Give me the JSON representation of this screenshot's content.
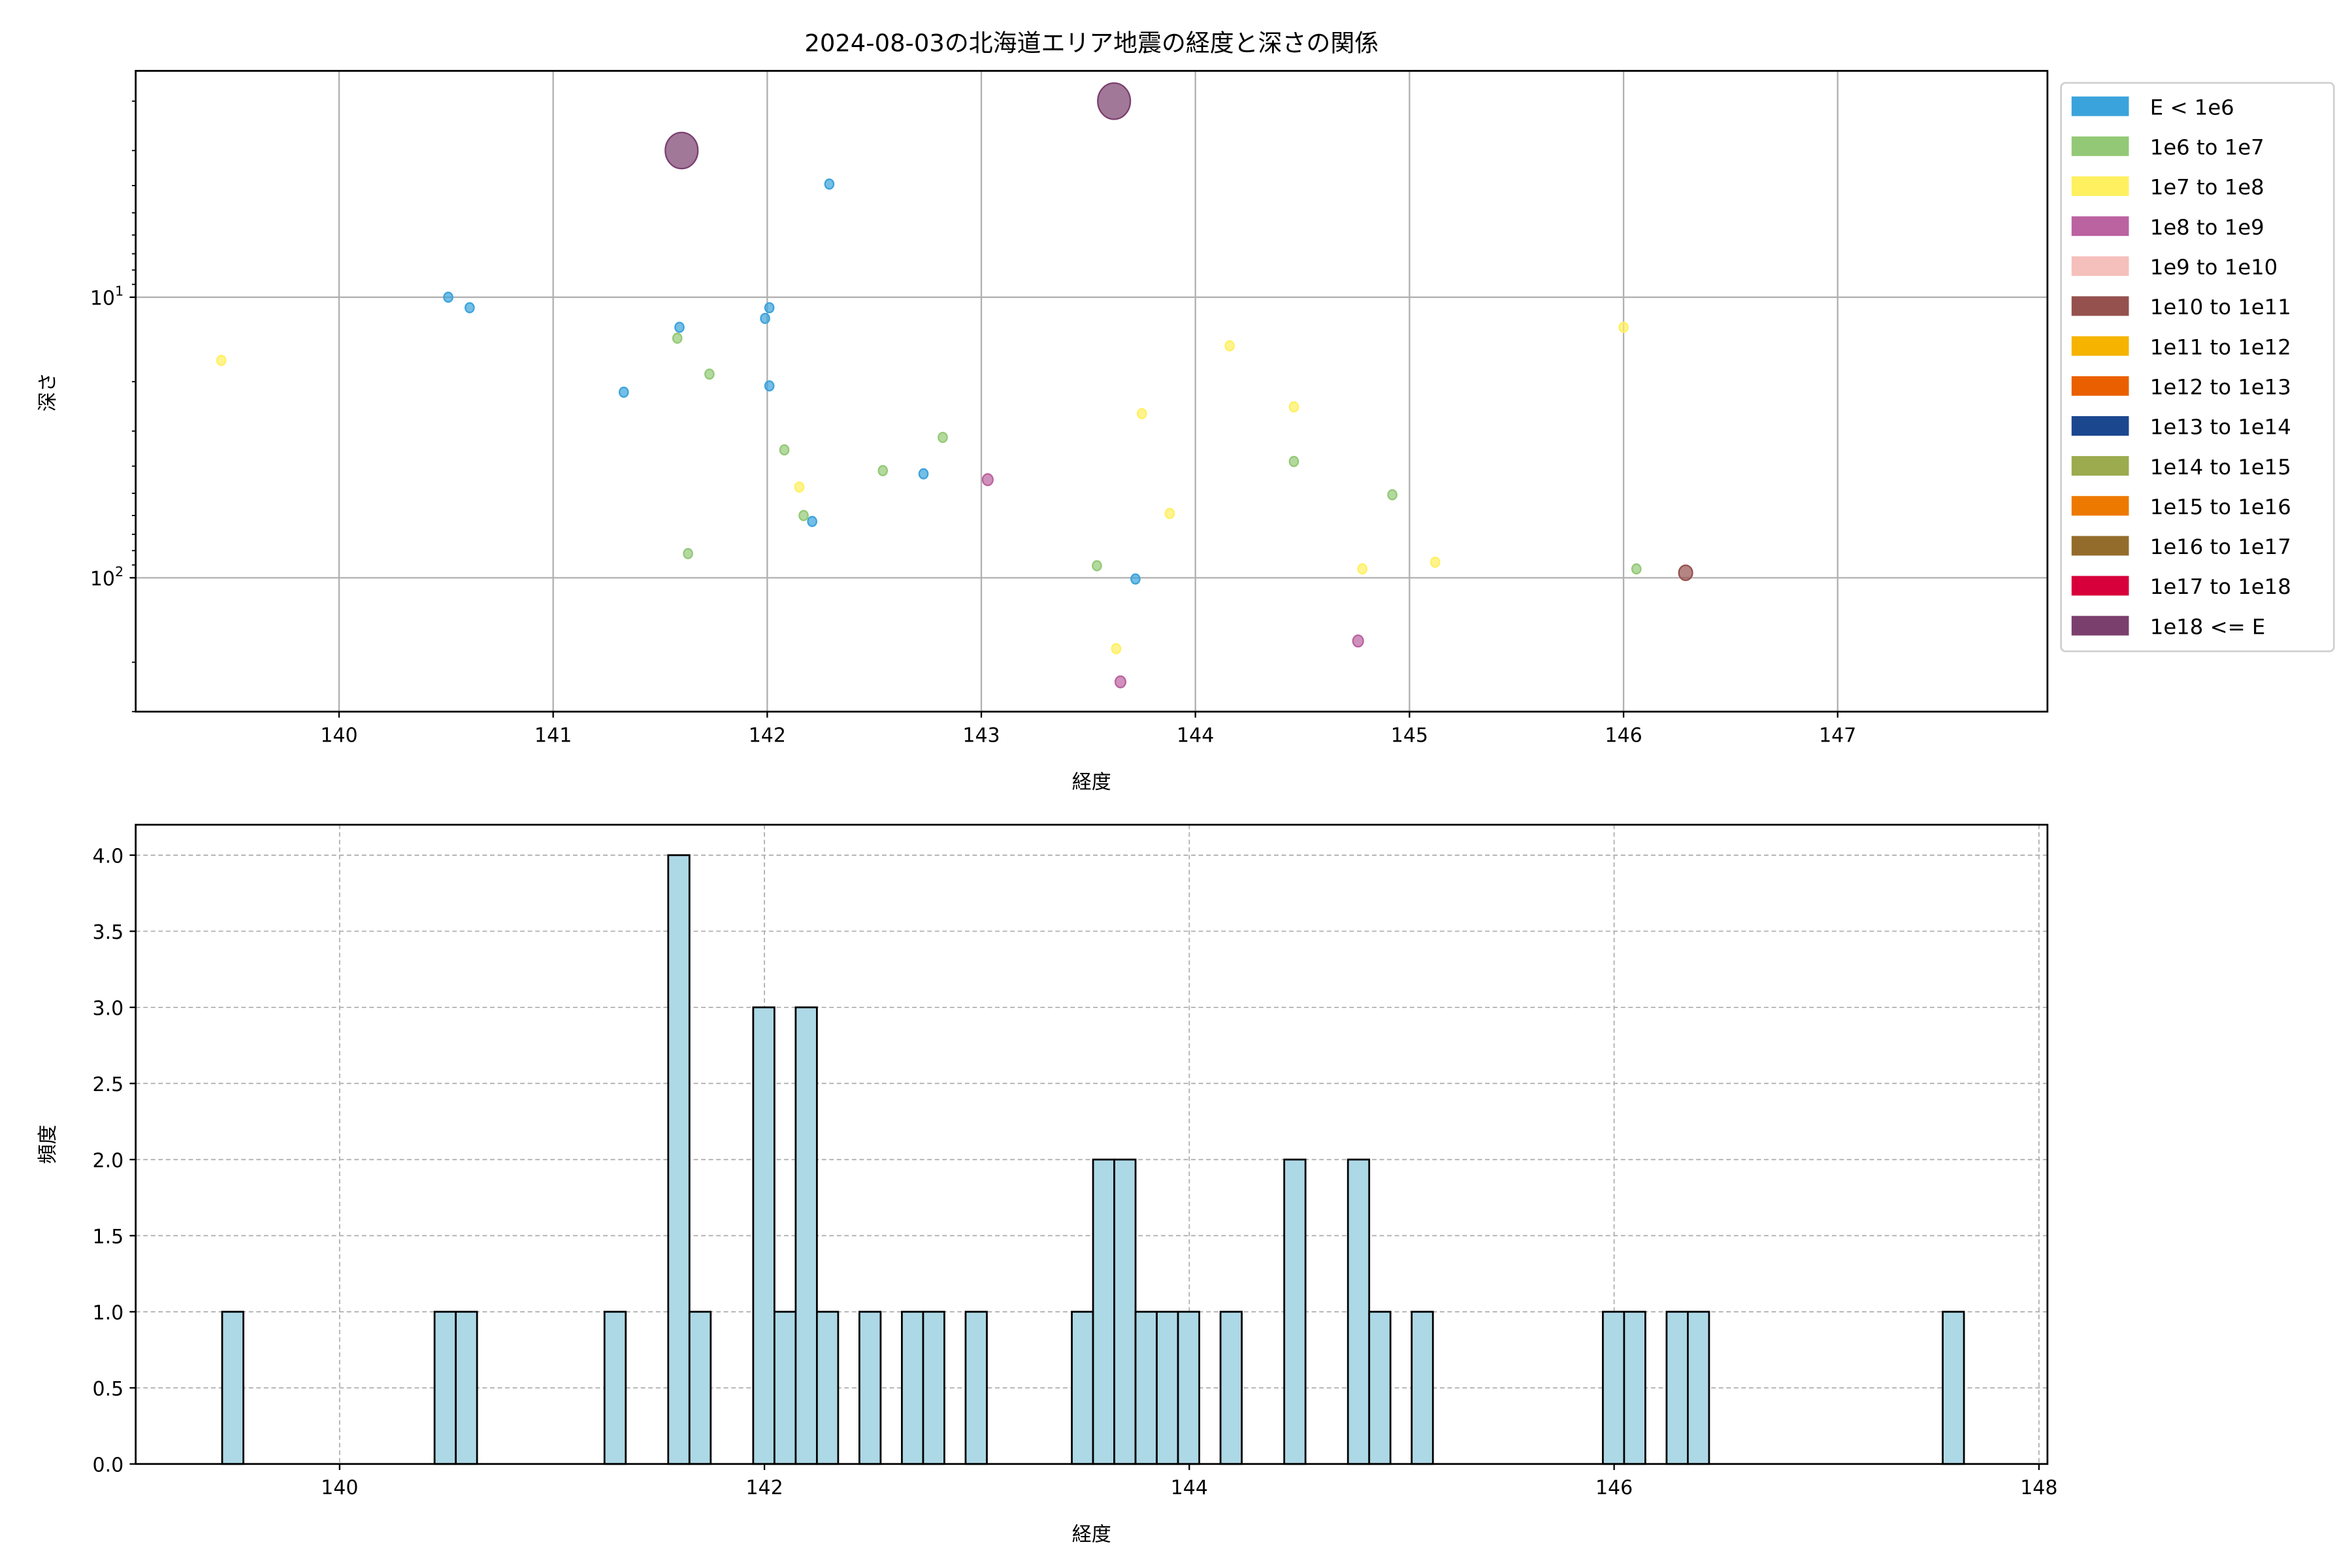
{
  "chart_data": [
    {
      "type": "scatter",
      "title": "2024-08-03の北海道エリア地震の経度と深さの関係",
      "xlabel": "経度",
      "ylabel": "深さ",
      "xlim": [
        139.05,
        147.98
      ],
      "ylim": [
        1.56,
        300
      ],
      "yscale": "log",
      "y_inverted": true,
      "grid": true,
      "x_ticks": [
        140,
        141,
        142,
        143,
        144,
        145,
        146,
        147
      ],
      "x_tick_labels": [
        "140",
        "141",
        "142",
        "143",
        "144",
        "145",
        "146",
        "147"
      ],
      "y_ticks": [
        10,
        100
      ],
      "y_tick_labels": [
        {
          "base": "10",
          "exp": "1"
        },
        {
          "base": "10",
          "exp": "2"
        }
      ],
      "legend_placement": "outside-right",
      "legend": [
        {
          "label": "E < 1e6",
          "color": "#3ba3dc"
        },
        {
          "label": "1e6 to 1e7",
          "color": "#93c976"
        },
        {
          "label": "1e7 to 1e8",
          "color": "#fff05f"
        },
        {
          "label": "1e8 to 1e9",
          "color": "#bb62a0"
        },
        {
          "label": "1e9 to 1e10",
          "color": "#f5bfbb"
        },
        {
          "label": "1e10 to 1e11",
          "color": "#95514e"
        },
        {
          "label": "1e11 to 1e12",
          "color": "#f6b400"
        },
        {
          "label": "1e12 to 1e13",
          "color": "#ea6000"
        },
        {
          "label": "1e13 to 1e14",
          "color": "#1b478f"
        },
        {
          "label": "1e14 to 1e15",
          "color": "#9bab4e"
        },
        {
          "label": "1e15 to 1e16",
          "color": "#ee7900"
        },
        {
          "label": "1e16 to 1e17",
          "color": "#936c2c"
        },
        {
          "label": "1e17 to 1e18",
          "color": "#d8003a"
        },
        {
          "label": "1e18 <= E",
          "color": "#7b3f6e"
        }
      ],
      "points": [
        {
          "lon": 139.45,
          "depth": 16.8,
          "class": 2
        },
        {
          "lon": 140.51,
          "depth": 10.0,
          "class": 0
        },
        {
          "lon": 140.61,
          "depth": 10.9,
          "class": 0
        },
        {
          "lon": 141.33,
          "depth": 21.8,
          "class": 0
        },
        {
          "lon": 141.6,
          "depth": 3.0,
          "class": 13
        },
        {
          "lon": 141.59,
          "depth": 12.8,
          "class": 0
        },
        {
          "lon": 141.58,
          "depth": 14.0,
          "class": 1
        },
        {
          "lon": 141.73,
          "depth": 18.8,
          "class": 1
        },
        {
          "lon": 141.63,
          "depth": 82,
          "class": 1
        },
        {
          "lon": 142.01,
          "depth": 10.9,
          "class": 0
        },
        {
          "lon": 141.99,
          "depth": 11.9,
          "class": 0
        },
        {
          "lon": 142.01,
          "depth": 20.7,
          "class": 0
        },
        {
          "lon": 142.29,
          "depth": 3.95,
          "class": 0
        },
        {
          "lon": 142.08,
          "depth": 35,
          "class": 1
        },
        {
          "lon": 142.15,
          "depth": 47.5,
          "class": 2
        },
        {
          "lon": 142.17,
          "depth": 60,
          "class": 1
        },
        {
          "lon": 142.21,
          "depth": 63,
          "class": 0
        },
        {
          "lon": 142.54,
          "depth": 41.5,
          "class": 1
        },
        {
          "lon": 142.73,
          "depth": 42.6,
          "class": 0
        },
        {
          "lon": 142.82,
          "depth": 31.6,
          "class": 1
        },
        {
          "lon": 143.03,
          "depth": 44.7,
          "class": 3
        },
        {
          "lon": 143.62,
          "depth": 2.0,
          "class": 13
        },
        {
          "lon": 143.54,
          "depth": 90.6,
          "class": 1
        },
        {
          "lon": 143.72,
          "depth": 101,
          "class": 0
        },
        {
          "lon": 143.63,
          "depth": 179,
          "class": 2
        },
        {
          "lon": 143.65,
          "depth": 235,
          "class": 3
        },
        {
          "lon": 143.75,
          "depth": 26,
          "class": 2
        },
        {
          "lon": 143.88,
          "depth": 59,
          "class": 2
        },
        {
          "lon": 144.16,
          "depth": 14.9,
          "class": 2
        },
        {
          "lon": 144.46,
          "depth": 24.6,
          "class": 2
        },
        {
          "lon": 144.46,
          "depth": 38.5,
          "class": 1
        },
        {
          "lon": 144.78,
          "depth": 93,
          "class": 2
        },
        {
          "lon": 144.76,
          "depth": 168,
          "class": 3
        },
        {
          "lon": 144.92,
          "depth": 50.6,
          "class": 1
        },
        {
          "lon": 145.12,
          "depth": 88,
          "class": 2
        },
        {
          "lon": 146.0,
          "depth": 12.8,
          "class": 2
        },
        {
          "lon": 146.06,
          "depth": 93,
          "class": 1
        },
        {
          "lon": 146.29,
          "depth": 96,
          "class": 5
        }
      ]
    },
    {
      "type": "bar",
      "subtype": "histogram",
      "title": "",
      "xlabel": "経度",
      "ylabel": "頻度",
      "xlim": [
        139.04,
        148.04
      ],
      "ylim": [
        0,
        4.2
      ],
      "grid": true,
      "bar_color": "#add8e6",
      "edge_color": "#000000",
      "bin_start": 139.447,
      "bin_width": 0.1,
      "bins": [
        {
          "index": 0,
          "count": 1
        },
        {
          "index": 10,
          "count": 1
        },
        {
          "index": 11,
          "count": 1
        },
        {
          "index": 18,
          "count": 1
        },
        {
          "index": 21,
          "count": 4
        },
        {
          "index": 22,
          "count": 1
        },
        {
          "index": 25,
          "count": 3
        },
        {
          "index": 26,
          "count": 1
        },
        {
          "index": 27,
          "count": 3
        },
        {
          "index": 28,
          "count": 1
        },
        {
          "index": 30,
          "count": 1
        },
        {
          "index": 32,
          "count": 1
        },
        {
          "index": 33,
          "count": 1
        },
        {
          "index": 35,
          "count": 1
        },
        {
          "index": 40,
          "count": 1
        },
        {
          "index": 41,
          "count": 2
        },
        {
          "index": 42,
          "count": 2
        },
        {
          "index": 43,
          "count": 1
        },
        {
          "index": 44,
          "count": 1
        },
        {
          "index": 45,
          "count": 1
        },
        {
          "index": 47,
          "count": 1
        },
        {
          "index": 50,
          "count": 2
        },
        {
          "index": 53,
          "count": 2
        },
        {
          "index": 54,
          "count": 1
        },
        {
          "index": 56,
          "count": 1
        },
        {
          "index": 65,
          "count": 1
        },
        {
          "index": 66,
          "count": 1
        },
        {
          "index": 68,
          "count": 1
        },
        {
          "index": 69,
          "count": 1
        },
        {
          "index": 81,
          "count": 1
        }
      ],
      "x_ticks": [
        140,
        142,
        144,
        146,
        148
      ],
      "x_tick_labels": [
        "140",
        "142",
        "144",
        "146",
        "148"
      ],
      "y_ticks": [
        0,
        0.5,
        1,
        1.5,
        2,
        2.5,
        3,
        3.5,
        4
      ],
      "y_tick_labels": [
        "0.0",
        "0.5",
        "1.0",
        "1.5",
        "2.0",
        "2.5",
        "3.0",
        "3.5",
        "4.0"
      ]
    }
  ]
}
